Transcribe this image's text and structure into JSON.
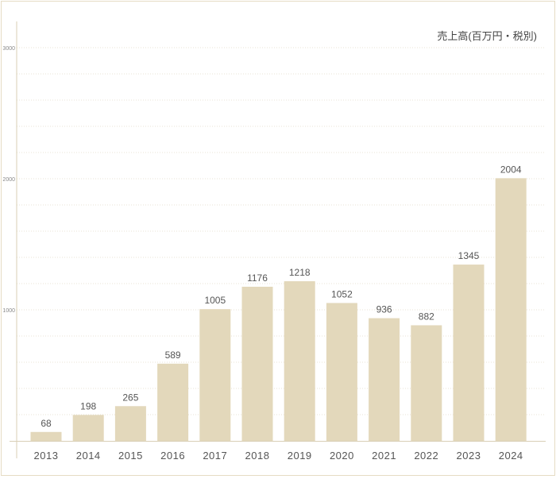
{
  "chart_data": {
    "type": "bar",
    "title": "売上高(百万円・税別)",
    "categories": [
      "2013",
      "2014",
      "2015",
      "2016",
      "2017",
      "2018",
      "2019",
      "2020",
      "2021",
      "2022",
      "2023",
      "2024"
    ],
    "values": [
      68,
      198,
      265,
      589,
      1005,
      1176,
      1218,
      1052,
      936,
      882,
      1345,
      2004
    ],
    "data_labels": [
      "68",
      "198",
      "265",
      "589",
      "1005",
      "1176",
      "1218",
      "1052",
      "936",
      "882",
      "1345",
      "2004"
    ],
    "y_ticks": [
      {
        "value": 1000,
        "label": "1000"
      },
      {
        "value": 2000,
        "label": "2000"
      },
      {
        "value": 3000,
        "label": "3000"
      }
    ],
    "ylim": [
      0,
      3000
    ],
    "grid": true,
    "legend": "none",
    "bar_color": "#e3d8bb",
    "text_color": "#555555",
    "grid_color": "#e9e3d4"
  }
}
